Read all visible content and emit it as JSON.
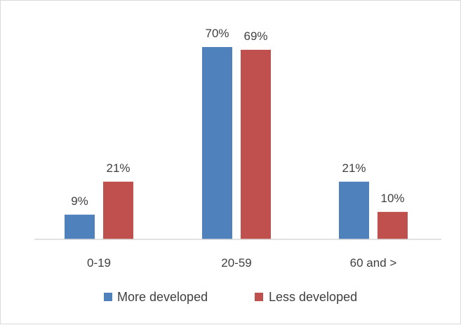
{
  "chart_data": {
    "type": "bar",
    "title": "",
    "xlabel": "",
    "ylabel": "",
    "categories": [
      "0-19",
      "20-59",
      "60 and >"
    ],
    "series": [
      {
        "name": "More developed",
        "values": [
          9,
          70,
          21
        ],
        "labels": [
          "9%",
          "70%",
          "21%"
        ],
        "color": "#4f81bd"
      },
      {
        "name": "Less developed",
        "values": [
          21,
          69,
          10
        ],
        "labels": [
          "21%",
          "69%",
          "10%"
        ],
        "color": "#c0504d"
      }
    ],
    "ylim": [
      0,
      70
    ],
    "grid": false,
    "legend_position": "bottom"
  }
}
